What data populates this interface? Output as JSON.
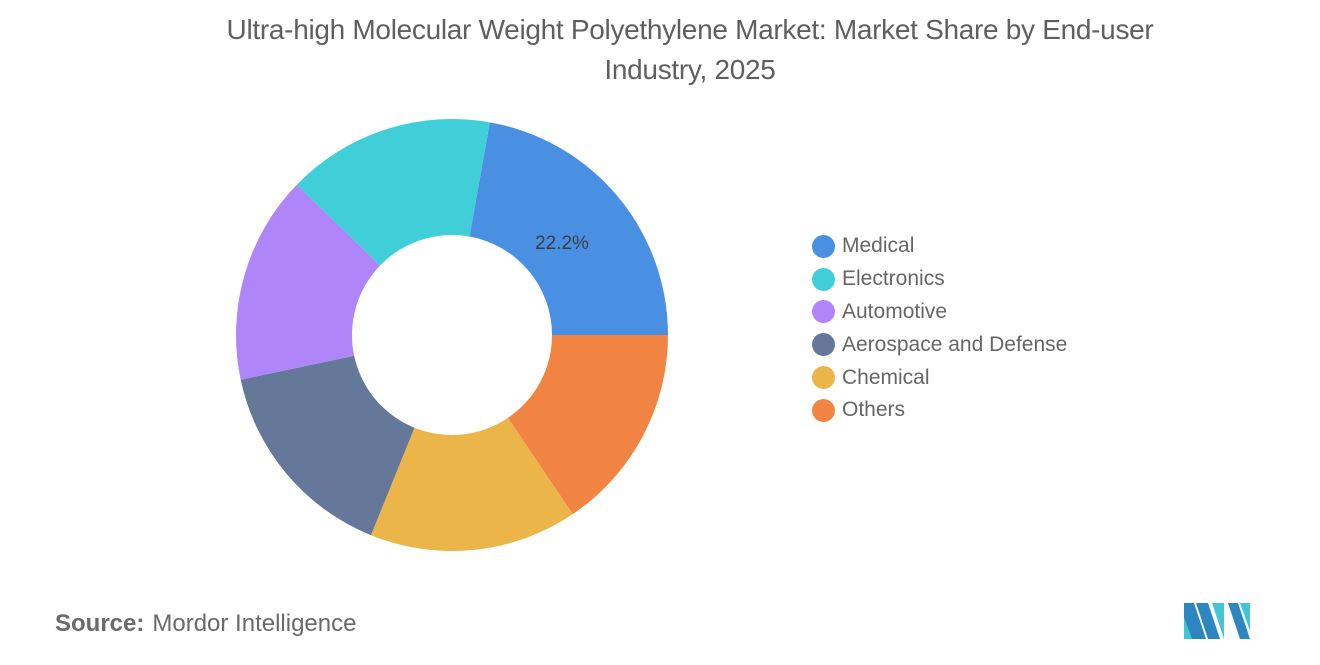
{
  "title": "Ultra-high Molecular Weight Polyethylene Market: Market Share by End-user Industry, 2025",
  "title_lines": [
    "Ultra-high Molecular Weight Polyethylene Market: Market Share by End-user",
    "Industry, 2025"
  ],
  "legend": {
    "items": [
      {
        "label": "Medical",
        "color": "#4A90E2"
      },
      {
        "label": "Electronics",
        "color": "#40CFD9"
      },
      {
        "label": "Automotive",
        "color": "#B185FA"
      },
      {
        "label": "Aerospace and Defense",
        "color": "#657899"
      },
      {
        "label": "Chemical",
        "color": "#EBB54A"
      },
      {
        "label": "Others",
        "color": "#F28443"
      }
    ]
  },
  "data_label": "22.2%",
  "source": {
    "label": "Source:",
    "value": "Mordor Intelligence"
  },
  "chart_data": {
    "type": "pie",
    "subtype": "donut",
    "title": "Ultra-high Molecular Weight Polyethylene Market: Market Share by End-user Industry, 2025",
    "categories": [
      "Medical",
      "Electronics",
      "Automotive",
      "Aerospace and Defense",
      "Chemical",
      "Others"
    ],
    "values": [
      22.2,
      15.56,
      15.56,
      15.56,
      15.56,
      15.56
    ],
    "colors": [
      "#4A90E2",
      "#40CFD9",
      "#B185FA",
      "#657899",
      "#EBB54A",
      "#F28443"
    ],
    "labels_shown": {
      "Medical": "22.2%"
    },
    "legend_position": "right",
    "direction": "clockwise from Medical, which ends at 3 o'clock; others ordered counter-clockwise in legend"
  }
}
